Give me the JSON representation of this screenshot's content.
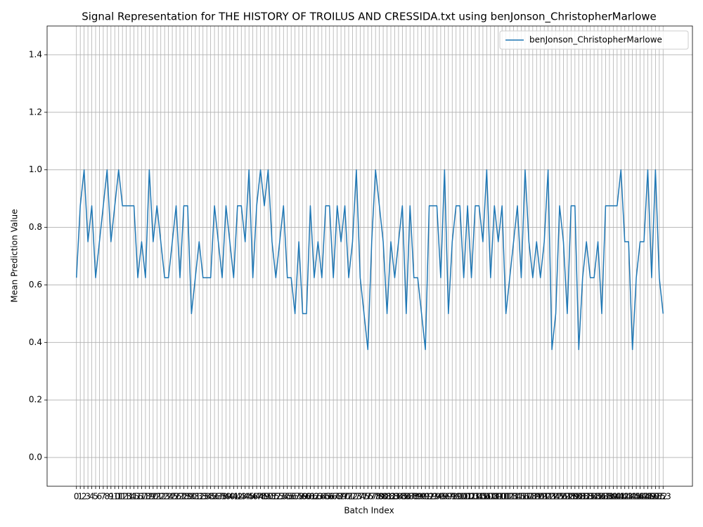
{
  "chart_data": {
    "type": "line",
    "title": "Signal Representation for THE HISTORY OF TROILUS AND CRESSIDA.txt using benJonson_ChristopherMarlowe",
    "xlabel": "Batch Index",
    "ylabel": "Mean Prediction Value",
    "x": [
      0,
      1,
      2,
      3,
      4,
      5,
      6,
      7,
      8,
      9,
      10,
      11,
      12,
      13,
      14,
      15,
      16,
      17,
      18,
      19,
      20,
      21,
      22,
      23,
      24,
      25,
      26,
      27,
      28,
      29,
      30,
      31,
      32,
      33,
      34,
      35,
      36,
      37,
      38,
      39,
      40,
      41,
      42,
      43,
      44,
      45,
      46,
      47,
      48,
      49,
      50,
      51,
      52,
      53,
      54,
      55,
      56,
      57,
      58,
      59,
      60,
      61,
      62,
      63,
      64,
      65,
      66,
      67,
      68,
      69,
      70,
      71,
      72,
      73,
      74,
      75,
      76,
      77,
      78,
      79,
      80,
      81,
      82,
      83,
      84,
      85,
      86,
      87,
      88,
      89,
      90,
      91,
      92,
      93,
      94,
      95,
      96,
      97,
      98,
      99,
      100,
      101,
      102,
      103,
      104,
      105,
      106,
      107,
      108,
      109,
      110,
      111,
      112,
      113,
      114,
      115,
      116,
      117,
      118,
      119,
      120,
      121,
      122,
      123,
      124,
      125,
      126,
      127,
      128,
      129,
      130,
      131,
      132,
      133,
      134,
      135,
      136,
      137,
      138,
      139,
      140,
      141,
      142,
      143,
      144,
      145,
      146,
      147,
      148,
      149,
      150,
      151,
      152,
      153
    ],
    "series": [
      {
        "name": "benJonson_ChristopherMarlowe",
        "color": "#1f77b4",
        "values": [
          0.625,
          0.875,
          1.0,
          0.75,
          0.875,
          0.625,
          0.75,
          0.875,
          1.0,
          0.75,
          0.875,
          1.0,
          0.875,
          0.875,
          0.875,
          0.875,
          0.625,
          0.75,
          0.625,
          1.0,
          0.75,
          0.875,
          0.75,
          0.625,
          0.625,
          0.75,
          0.875,
          0.625,
          0.875,
          0.875,
          0.5,
          0.625,
          0.75,
          0.625,
          0.625,
          0.625,
          0.875,
          0.75,
          0.625,
          0.875,
          0.75,
          0.625,
          0.875,
          0.875,
          0.75,
          1.0,
          0.625,
          0.875,
          1.0,
          0.875,
          1.0,
          0.75,
          0.625,
          0.75,
          0.875,
          0.625,
          0.625,
          0.5,
          0.75,
          0.5,
          0.5,
          0.875,
          0.625,
          0.75,
          0.625,
          0.875,
          0.875,
          0.625,
          0.875,
          0.75,
          0.875,
          0.625,
          0.75,
          1.0,
          0.625,
          0.5,
          0.375,
          0.75,
          1.0,
          0.875,
          0.75,
          0.5,
          0.75,
          0.625,
          0.75,
          0.875,
          0.5,
          0.875,
          0.625,
          0.625,
          0.5,
          0.375,
          0.875,
          0.875,
          0.875,
          0.625,
          1.0,
          0.5,
          0.75,
          0.875,
          0.875,
          0.625,
          0.875,
          0.625,
          0.875,
          0.875,
          0.75,
          1.0,
          0.625,
          0.875,
          0.75,
          0.875,
          0.5,
          0.625,
          0.75,
          0.875,
          0.625,
          1.0,
          0.75,
          0.625,
          0.75,
          0.625,
          0.75,
          1.0,
          0.375,
          0.5,
          0.875,
          0.75,
          0.5,
          0.875,
          0.875,
          0.375,
          0.625,
          0.75,
          0.625,
          0.625,
          0.75,
          0.5,
          0.875,
          0.875,
          0.875,
          0.875,
          1.0,
          0.75,
          0.75,
          0.375,
          0.625,
          0.75,
          0.75,
          1.0,
          0.625,
          1.0,
          0.625,
          0.5
        ]
      }
    ],
    "xlim": [
      -7.65,
      160.65
    ],
    "xticks": [
      0,
      1,
      2,
      3,
      4,
      5,
      6,
      7,
      8,
      9,
      10,
      11,
      12,
      13,
      14,
      15,
      16,
      17,
      18,
      19,
      20,
      21,
      22,
      23,
      24,
      25,
      26,
      27,
      28,
      29,
      30,
      31,
      32,
      33,
      34,
      35,
      36,
      37,
      38,
      39,
      40,
      41,
      42,
      43,
      44,
      45,
      46,
      47,
      48,
      49,
      50,
      51,
      52,
      53,
      54,
      55,
      56,
      57,
      58,
      59,
      60,
      61,
      62,
      63,
      64,
      65,
      66,
      67,
      68,
      69,
      70,
      71,
      72,
      73,
      74,
      75,
      76,
      77,
      78,
      79,
      80,
      81,
      82,
      83,
      84,
      85,
      86,
      87,
      88,
      89,
      90,
      91,
      92,
      93,
      94,
      95,
      96,
      97,
      98,
      99,
      100,
      101,
      102,
      103,
      104,
      105,
      106,
      107,
      108,
      109,
      110,
      111,
      112,
      113,
      114,
      115,
      116,
      117,
      118,
      119,
      120,
      121,
      122,
      123,
      124,
      125,
      126,
      127,
      128,
      129,
      130,
      131,
      132,
      133,
      134,
      135,
      136,
      137,
      138,
      139,
      140,
      141,
      142,
      143,
      144,
      145,
      146,
      147,
      148,
      149,
      150,
      151,
      152,
      153
    ],
    "ylim": [
      -0.1,
      1.5
    ],
    "yticks": [
      {
        "value": 0,
        "label": "0.0"
      },
      {
        "value": 0.2,
        "label": "0.2"
      },
      {
        "value": 0.4,
        "label": "0.4"
      },
      {
        "value": 0.6,
        "label": "0.6"
      },
      {
        "value": 0.8,
        "label": "0.8"
      },
      {
        "value": 1.0,
        "label": "1.0"
      },
      {
        "value": 1.2,
        "label": "1.2"
      },
      {
        "value": 1.4,
        "label": "1.4"
      }
    ],
    "grid": true,
    "legend": "upper right"
  }
}
